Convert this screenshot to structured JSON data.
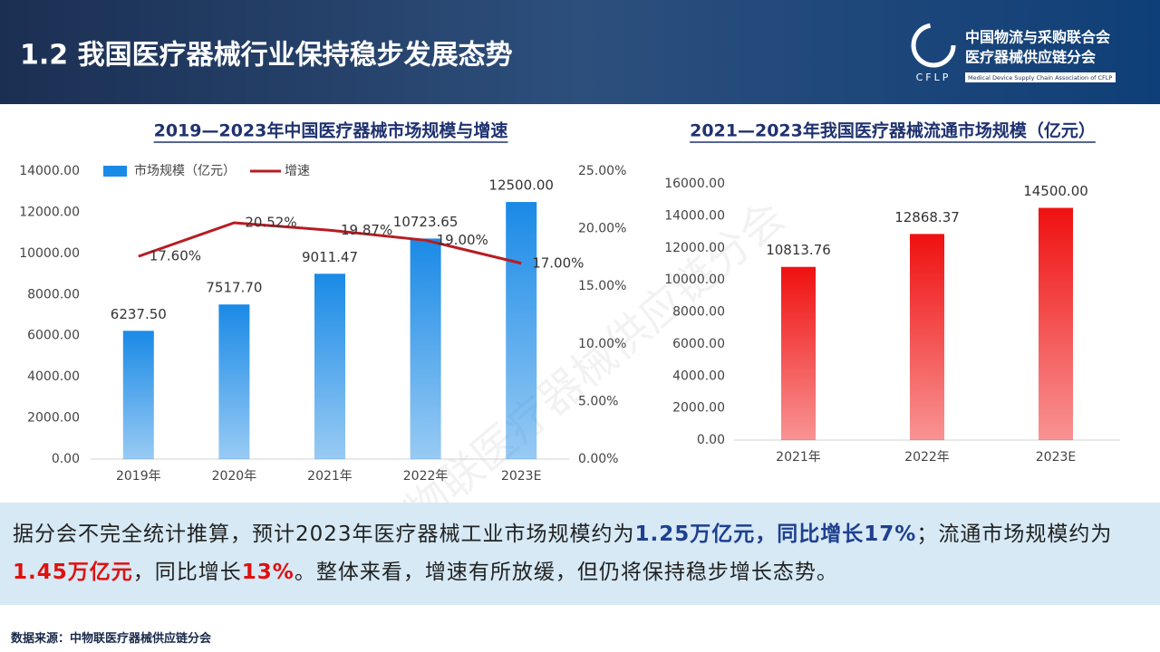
{
  "header": {
    "title": "1.2 我国医疗器械行业保持稳步发展态势",
    "org_line1": "中国物流与采购联合会",
    "org_line2": "医疗器械供应链分会",
    "org_en": "Medical Device Supply Chain Association of CFLP",
    "logo_text": "CFLP"
  },
  "watermark": "中物联医疗器械供应链分会",
  "chart_data": [
    {
      "type": "bar",
      "title": "2019—2023年中国医疗器械市场规模与增速",
      "categories": [
        "2019年",
        "2020年",
        "2021年",
        "2022年",
        "2023E"
      ],
      "series": [
        {
          "name": "市场规模（亿元）",
          "type": "bar",
          "color": "#1a8ae6",
          "values": [
            6237.5,
            7517.7,
            9011.47,
            10723.65,
            12500
          ],
          "value_labels": [
            "6237.50",
            "7517.70",
            "9011.47",
            "10723.65",
            "12500.00"
          ]
        },
        {
          "name": "增速",
          "type": "line",
          "axis": "y2",
          "color": "#b81c22",
          "values": [
            17.6,
            20.52,
            19.87,
            19,
            17
          ],
          "value_labels": [
            "17.60%",
            "20.52%",
            "19.87%",
            "19.00%",
            "17.00%"
          ]
        }
      ],
      "ylim": [
        0,
        14000
      ],
      "yticks": [
        {
          "value": 0,
          "label": "0.00"
        },
        {
          "value": 2000,
          "label": "2000.00"
        },
        {
          "value": 4000,
          "label": "4000.00"
        },
        {
          "value": 6000,
          "label": "6000.00"
        },
        {
          "value": 8000,
          "label": "8000.00"
        },
        {
          "value": 10000,
          "label": "10000.00"
        },
        {
          "value": 12000,
          "label": "12000.00"
        },
        {
          "value": 14000,
          "label": "14000.00"
        }
      ],
      "y2lim": [
        0,
        25
      ],
      "y2ticks": [
        {
          "value": 0,
          "label": "0.00%"
        },
        {
          "value": 5,
          "label": "5.00%"
        },
        {
          "value": 10,
          "label": "10.00%"
        },
        {
          "value": 15,
          "label": "15.00%"
        },
        {
          "value": 20,
          "label": "20.00%"
        },
        {
          "value": 25,
          "label": "25.00%"
        }
      ],
      "legend": "top-left"
    },
    {
      "type": "bar",
      "title": "2021—2023年我国医疗器械流通市场规模（亿元）",
      "categories": [
        "2021年",
        "2022年",
        "2023E"
      ],
      "values": [
        10813.76,
        12868.37,
        14500
      ],
      "value_labels": [
        "10813.76",
        "12868.37",
        "14500.00"
      ],
      "color": "#f01010",
      "ylim": [
        0,
        16000
      ],
      "yticks": [
        {
          "value": 0,
          "label": "0.00"
        },
        {
          "value": 2000,
          "label": "2000.00"
        },
        {
          "value": 4000,
          "label": "4000.00"
        },
        {
          "value": 6000,
          "label": "6000.00"
        },
        {
          "value": 8000,
          "label": "8000.00"
        },
        {
          "value": 10000,
          "label": "10000.00"
        },
        {
          "value": 12000,
          "label": "12000.00"
        },
        {
          "value": 14000,
          "label": "14000.00"
        },
        {
          "value": 16000,
          "label": "16000.00"
        }
      ]
    }
  ],
  "summary": [
    {
      "text": "据分会不完全统计推算，预计2023年医疗器械工业市场规模约为",
      "style": "plain"
    },
    {
      "text": "1.25万亿元，同比增长17%",
      "style": "blue"
    },
    {
      "text": "；流通市场规模约为",
      "style": "plain"
    },
    {
      "text": "1.45万亿元",
      "style": "red"
    },
    {
      "text": "，同比增长",
      "style": "plain"
    },
    {
      "text": "13%",
      "style": "red"
    },
    {
      "text": "。整体来看，增速有所放缓，但仍将保持稳步增长态势。",
      "style": "plain"
    }
  ],
  "source": "数据来源：中物联医疗器械供应链分会"
}
